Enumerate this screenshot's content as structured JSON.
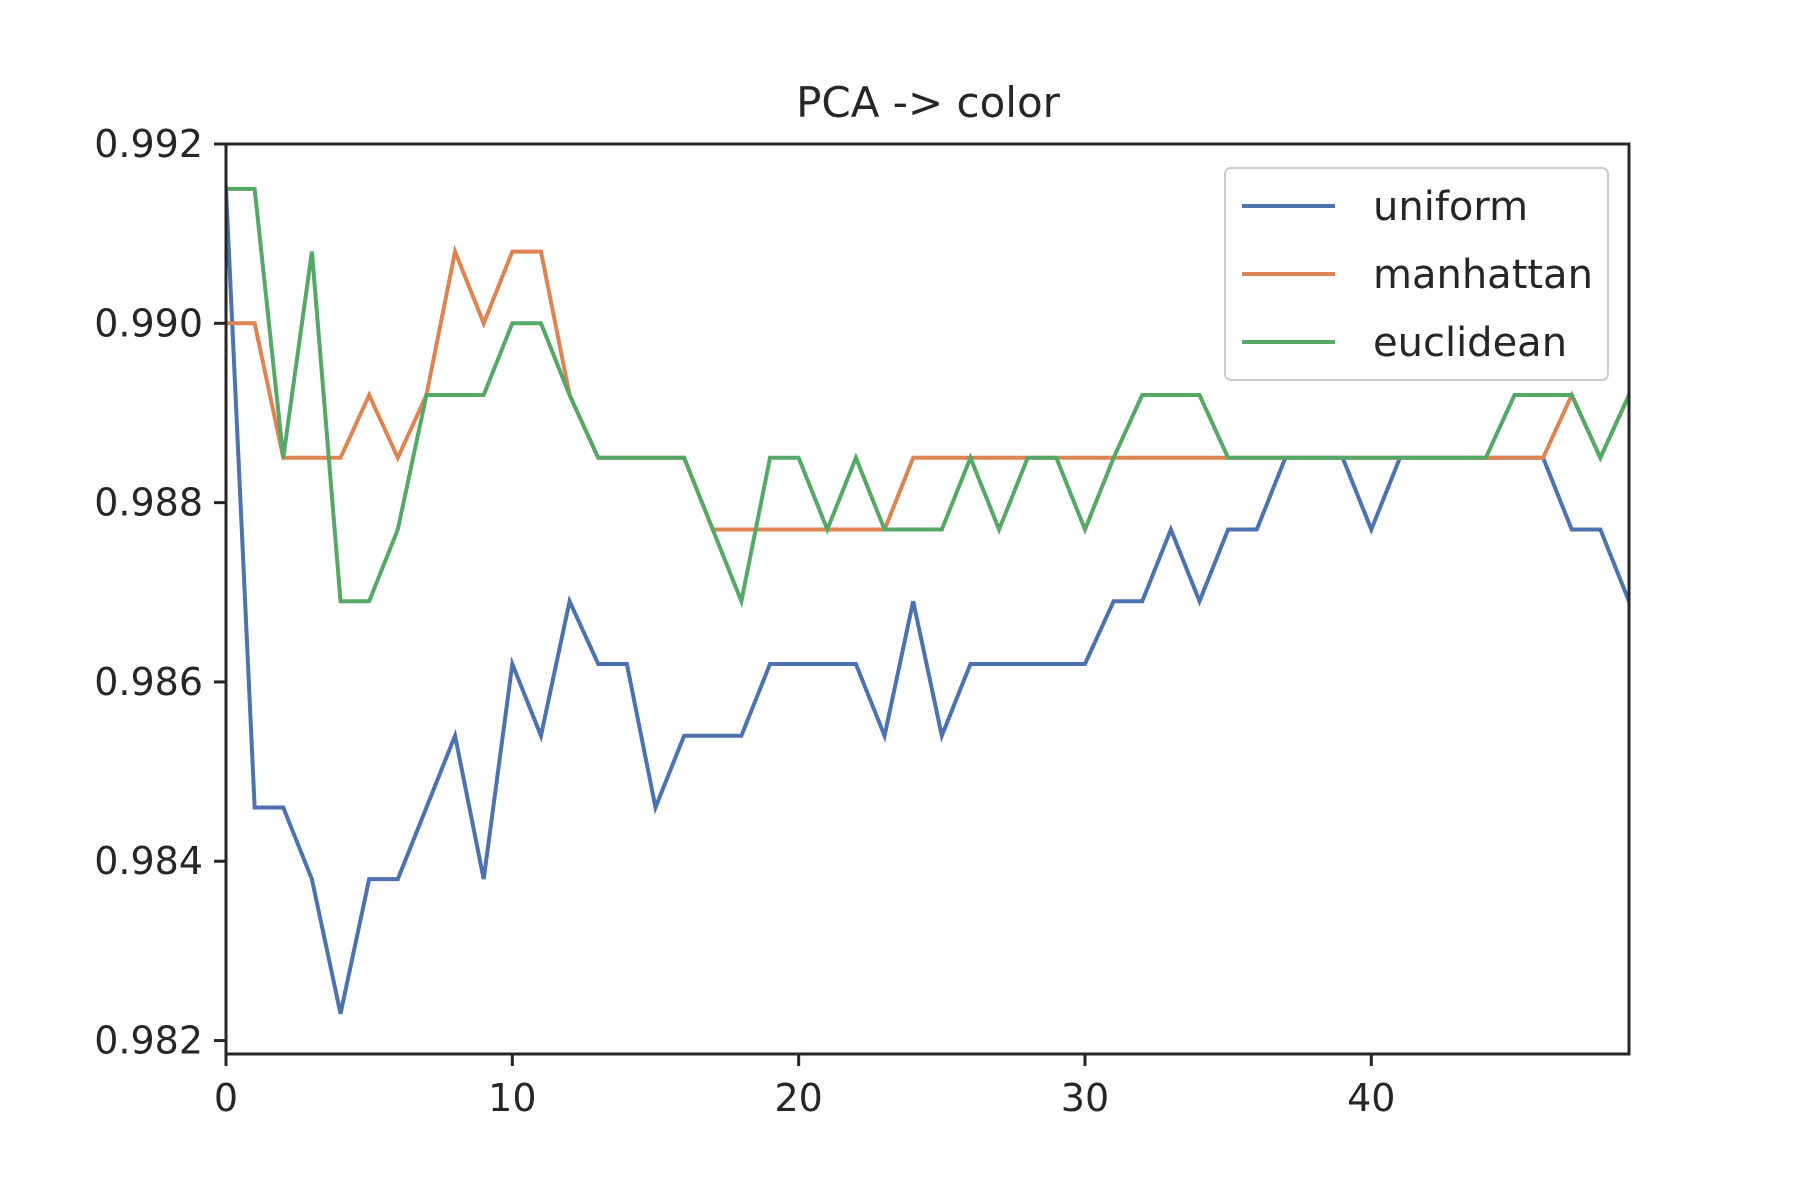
{
  "chart_data": {
    "type": "line",
    "title": "PCA -> color",
    "xlabel": "",
    "ylabel": "",
    "xlim": [
      0,
      49
    ],
    "ylim": [
      0.98185,
      0.992
    ],
    "xticks": [
      0,
      10,
      20,
      30,
      40
    ],
    "yticks": [
      0.982,
      0.984,
      0.986,
      0.988,
      0.99,
      0.992
    ],
    "ytick_labels": [
      "0.982",
      "0.984",
      "0.986",
      "0.988",
      "0.990",
      "0.992"
    ],
    "grid": false,
    "legend_position": "top-right",
    "x": [
      0,
      1,
      2,
      3,
      4,
      5,
      6,
      7,
      8,
      9,
      10,
      11,
      12,
      13,
      14,
      15,
      16,
      17,
      18,
      19,
      20,
      21,
      22,
      23,
      24,
      25,
      26,
      27,
      28,
      29,
      30,
      31,
      32,
      33,
      34,
      35,
      36,
      37,
      38,
      39,
      40,
      41,
      42,
      43,
      44,
      45,
      46,
      47,
      48,
      49
    ],
    "series": [
      {
        "name": "uniform",
        "color": "#4c72b0",
        "values": [
          0.9915,
          0.9846,
          0.9846,
          0.9838,
          0.9823,
          0.9838,
          0.9838,
          0.9846,
          0.9854,
          0.9838,
          0.9862,
          0.9854,
          0.9869,
          0.9862,
          0.9862,
          0.9846,
          0.9854,
          0.9854,
          0.9854,
          0.9862,
          0.9862,
          0.9862,
          0.9862,
          0.9854,
          0.9869,
          0.9854,
          0.9862,
          0.9862,
          0.9862,
          0.9862,
          0.9862,
          0.9869,
          0.9869,
          0.9877,
          0.9869,
          0.9877,
          0.9877,
          0.9885,
          0.9885,
          0.9885,
          0.9877,
          0.9885,
          0.9885,
          0.9885,
          0.9885,
          0.9885,
          0.9885,
          0.9877,
          0.9877,
          0.9869
        ]
      },
      {
        "name": "manhattan",
        "color": "#dd8452",
        "values": [
          0.99,
          0.99,
          0.9885,
          0.9885,
          0.9885,
          0.9892,
          0.9885,
          0.9892,
          0.9908,
          0.99,
          0.9908,
          0.9908,
          0.9892,
          0.9885,
          0.9885,
          0.9885,
          0.9885,
          0.9877,
          0.9877,
          0.9877,
          0.9877,
          0.9877,
          0.9877,
          0.9877,
          0.9885,
          0.9885,
          0.9885,
          0.9885,
          0.9885,
          0.9885,
          0.9885,
          0.9885,
          0.9885,
          0.9885,
          0.9885,
          0.9885,
          0.9885,
          0.9885,
          0.9885,
          0.9885,
          0.9885,
          0.9885,
          0.9885,
          0.9885,
          0.9885,
          0.9885,
          0.9885,
          0.9892,
          0.9885,
          0.9892
        ]
      },
      {
        "name": "euclidean",
        "color": "#55a868",
        "values": [
          0.9915,
          0.9915,
          0.9885,
          0.9908,
          0.9869,
          0.9869,
          0.9877,
          0.9892,
          0.9892,
          0.9892,
          0.99,
          0.99,
          0.9892,
          0.9885,
          0.9885,
          0.9885,
          0.9885,
          0.9877,
          0.9869,
          0.9885,
          0.9885,
          0.9877,
          0.9885,
          0.9877,
          0.9877,
          0.9877,
          0.9885,
          0.9877,
          0.9885,
          0.9885,
          0.9877,
          0.9885,
          0.9892,
          0.9892,
          0.9892,
          0.9885,
          0.9885,
          0.9885,
          0.9885,
          0.9885,
          0.9885,
          0.9885,
          0.9885,
          0.9885,
          0.9885,
          0.9892,
          0.9892,
          0.9892,
          0.9885,
          0.9892
        ]
      }
    ]
  }
}
